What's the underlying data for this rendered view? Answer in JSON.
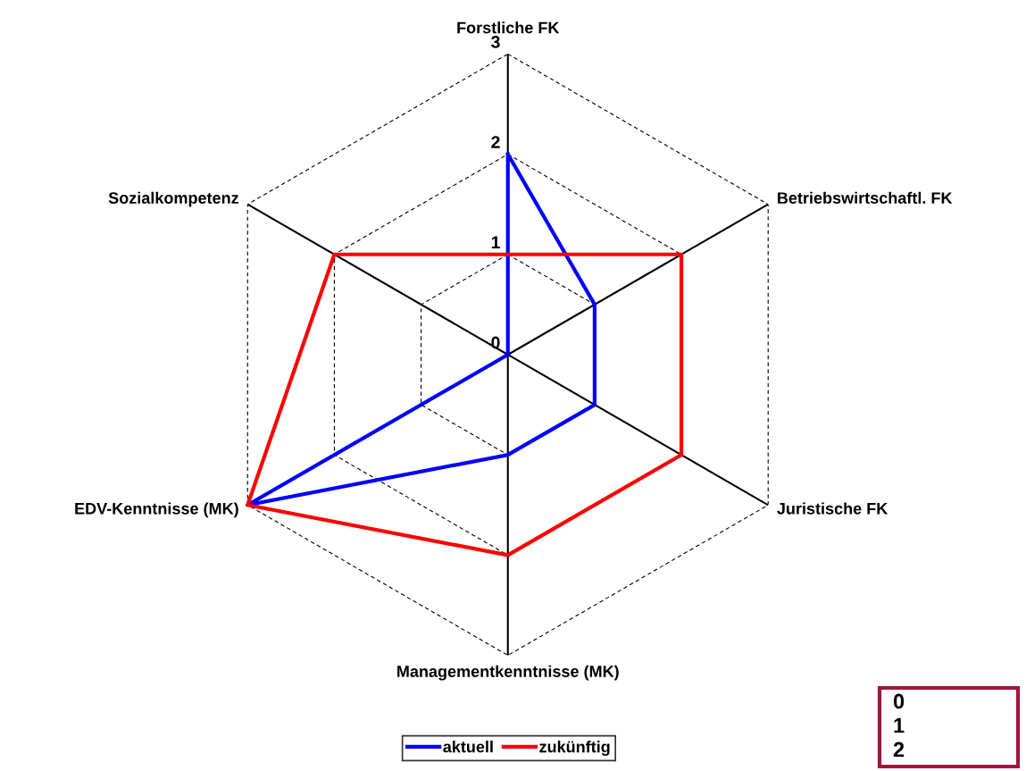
{
  "chart_data": {
    "type": "radar",
    "categories": [
      "Forstliche FK",
      "Betriebswirtschaftl. FK",
      "Juristische FK",
      "Managementkenntnisse (MK)",
      "EDV-Kenntnisse (MK)",
      "Sozialkompetenz"
    ],
    "series": [
      {
        "name": "aktuell",
        "color": "#0000ff",
        "values": [
          2,
          1,
          1,
          1,
          3,
          0
        ]
      },
      {
        "name": "zukünftig",
        "color": "#ff0000",
        "values": [
          1,
          2,
          2,
          2,
          3,
          2
        ]
      }
    ],
    "ylim": [
      0,
      3
    ],
    "yticks": [
      0,
      1,
      2,
      3
    ],
    "grid": true,
    "legend": "bottom",
    "marker": "none",
    "line_style": "solid",
    "annotations": [
      "0",
      "1",
      "2"
    ]
  }
}
